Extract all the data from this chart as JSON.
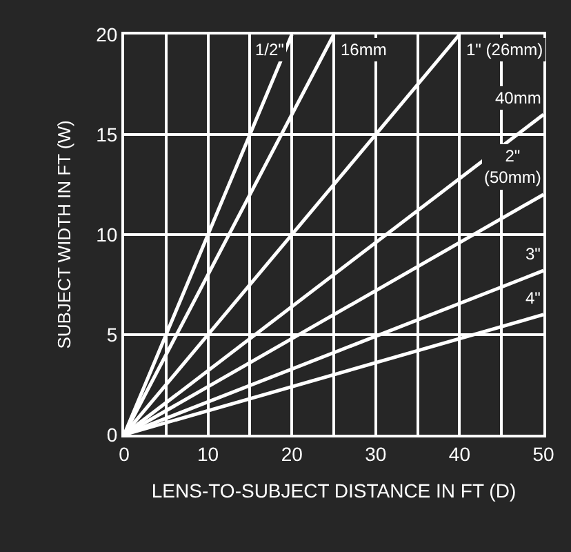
{
  "chart_data": {
    "type": "line",
    "xlabel": "LENS-TO-SUBJECT DISTANCE IN FT (D)",
    "ylabel": "SUBJECT WIDTH IN FT (W)",
    "xlim": [
      0,
      50
    ],
    "ylim": [
      0,
      20
    ],
    "xticks": [
      0,
      {
        "value": 5,
        "label": null
      },
      10,
      {
        "value": 15,
        "label": null
      },
      20,
      {
        "value": 25,
        "label": null
      },
      30,
      {
        "value": 35,
        "label": null
      },
      40,
      {
        "value": 45,
        "label": null
      },
      50
    ],
    "yticks": [
      0,
      5,
      10,
      15,
      20
    ],
    "grid": true,
    "marker": "none",
    "line_style": "solid",
    "series": [
      {
        "name": "1/2\"",
        "color": "#ffffff",
        "x": [
          0,
          20
        ],
        "values": [
          0,
          20
        ]
      },
      {
        "name": "16mm",
        "color": "#ffffff",
        "x": [
          0,
          25
        ],
        "values": [
          0,
          20
        ]
      },
      {
        "name": "1\" (26mm)",
        "color": "#ffffff",
        "x": [
          0,
          40
        ],
        "values": [
          0,
          20
        ]
      },
      {
        "name": "40mm",
        "color": "#ffffff",
        "x": [
          0,
          50
        ],
        "values": [
          0,
          16
        ]
      },
      {
        "name": "2\" (50mm)",
        "color": "#ffffff",
        "x": [
          0,
          50
        ],
        "values": [
          0,
          12
        ]
      },
      {
        "name": "3\"",
        "color": "#ffffff",
        "x": [
          0,
          50
        ],
        "values": [
          0,
          8.2
        ]
      },
      {
        "name": "4\"",
        "color": "#ffffff",
        "x": [
          0,
          50
        ],
        "values": [
          0,
          6
        ]
      }
    ]
  }
}
